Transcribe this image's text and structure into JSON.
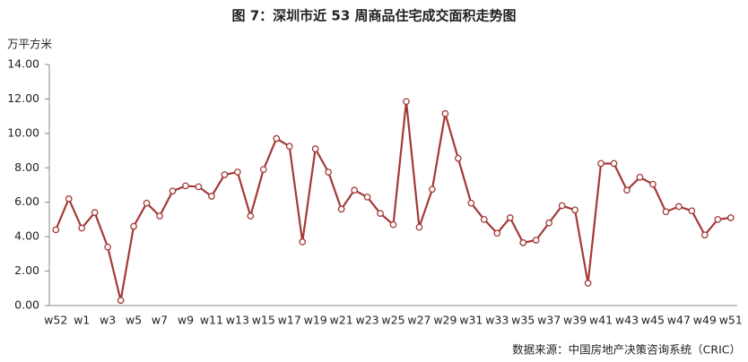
{
  "chart_data": {
    "type": "line",
    "title": "图 7：深圳市近 53 周商品住宅成交面积走势图",
    "y_label": "万平方米",
    "source": "数据来源：中国房地产决策咨询系统（CRIC）",
    "categories": [
      "w52",
      null,
      "w1",
      null,
      "w3",
      null,
      "w5",
      null,
      "w7",
      null,
      "w9",
      null,
      "w11",
      null,
      "w13",
      null,
      "w15",
      null,
      "w17",
      null,
      "w19",
      null,
      "w21",
      null,
      "w23",
      null,
      "w25",
      null,
      "w27",
      null,
      "w29",
      null,
      "w31",
      null,
      "w33",
      null,
      "w35",
      null,
      "w37",
      null,
      "w39",
      null,
      "w41",
      null,
      "w43",
      null,
      "w45",
      null,
      "w47",
      null,
      "w49",
      null,
      "w51"
    ],
    "series": [
      {
        "color": "#a33a36",
        "values": [
          4.4,
          6.2,
          4.5,
          5.4,
          3.4,
          0.3,
          4.6,
          5.95,
          5.2,
          6.65,
          6.95,
          6.9,
          6.35,
          7.6,
          7.75,
          5.2,
          7.9,
          9.7,
          9.25,
          3.7,
          9.1,
          7.75,
          5.6,
          6.7,
          6.3,
          5.35,
          4.7,
          11.85,
          4.55,
          6.75,
          11.15,
          8.55,
          5.95,
          5.0,
          4.2,
          5.1,
          3.65,
          3.8,
          4.8,
          5.8,
          5.55,
          1.3,
          8.25,
          8.25,
          6.7,
          7.45,
          7.05,
          5.45,
          5.75,
          5.5,
          4.1,
          5.0,
          5.1
        ]
      }
    ],
    "ylim": [
      0,
      14
    ],
    "yticks": [
      {
        "value": 0,
        "label": "0.00"
      },
      {
        "value": 2,
        "label": "2.00"
      },
      {
        "value": 4,
        "label": "4.00"
      },
      {
        "value": 6,
        "label": "6.00"
      },
      {
        "value": 8,
        "label": "8.00"
      },
      {
        "value": 10,
        "label": "10.00"
      },
      {
        "value": 12,
        "label": "12.00"
      },
      {
        "value": 14,
        "label": "14.00"
      }
    ],
    "grid": false
  }
}
